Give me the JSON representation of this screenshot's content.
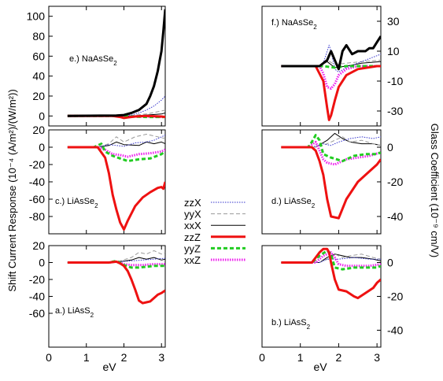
{
  "figure": {
    "left_ylabel": "Shift Current Response (10⁻⁴ (A/m²)/(W/m²))",
    "right_ylabel": "Glass Coefficient (10⁻⁹ cm/V)"
  },
  "legend": [
    {
      "name": "zzX",
      "color": "#3333cc",
      "dash": "1.5,1.5",
      "width": 1
    },
    {
      "name": "yyX",
      "color": "#999999",
      "dash": "5,3",
      "width": 1
    },
    {
      "name": "xxX",
      "color": "#000000",
      "dash": "",
      "width": 1
    },
    {
      "name": "zzZ",
      "color": "#ee1111",
      "dash": "",
      "width": 3
    },
    {
      "name": "yyZ",
      "color": "#22cc22",
      "dash": "5,3",
      "width": 3
    },
    {
      "name": "xxZ",
      "color": "#ee22ee",
      "dash": "1.5,1.5",
      "width": 3
    }
  ],
  "chart_data": [
    {
      "id": "e",
      "type": "line",
      "title": "e.) NaAsSe",
      "title_sub": "2",
      "xlim": [
        0,
        3.1
      ],
      "ylim": [
        -10,
        110
      ],
      "yticks": [
        0,
        20,
        40,
        60,
        80,
        100
      ],
      "series": [
        {
          "name": "zzX",
          "x": [
            0.5,
            1.5,
            1.8,
            2.0,
            2.2,
            2.4,
            2.6,
            2.8,
            3.0,
            3.1
          ],
          "y": [
            0,
            0,
            0,
            0.5,
            1,
            3,
            6,
            10,
            16,
            20
          ]
        },
        {
          "name": "yyX",
          "x": [
            0.5,
            1.8,
            2.2,
            2.6,
            3.0,
            3.1
          ],
          "y": [
            0,
            0,
            0.5,
            2,
            5,
            6
          ]
        },
        {
          "name": "xxX",
          "x": [
            0.5,
            1.8,
            2.2,
            2.6,
            3.0,
            3.1
          ],
          "y": [
            0,
            0,
            0,
            1,
            2,
            3
          ]
        },
        {
          "name": "zzZ",
          "x": [
            0.5,
            1.7,
            1.9,
            2.0,
            2.1,
            2.3,
            2.6,
            3.0,
            3.1
          ],
          "y": [
            0,
            0,
            -1,
            -2,
            -1.5,
            -0.5,
            0,
            -0.5,
            -1
          ]
        },
        {
          "name": "yyZ",
          "x": [
            0.5,
            1.8,
            2.2,
            2.6,
            3.0,
            3.1
          ],
          "y": [
            0,
            0,
            -0.5,
            -1,
            -1,
            -1
          ]
        },
        {
          "name": "xxZ",
          "x": [
            0.5,
            1.8,
            2.2,
            2.6,
            3.0,
            3.1
          ],
          "y": [
            0,
            0,
            -0.5,
            -0.5,
            -1,
            -1
          ]
        },
        {
          "name": "xxX",
          "role": "total",
          "x": [
            0.5,
            1.8,
            2.0,
            2.2,
            2.4,
            2.6,
            2.7,
            2.8,
            2.9,
            2.95,
            3.0,
            3.05,
            3.1
          ],
          "y": [
            0,
            0.5,
            1,
            3,
            6,
            12,
            20,
            30,
            45,
            55,
            65,
            85,
            107
          ]
        }
      ]
    },
    {
      "id": "f",
      "type": "line",
      "title": "f.) NaAsSe",
      "title_sub": "2",
      "xlim": [
        0,
        3.1
      ],
      "ylim": [
        -40,
        40
      ],
      "yticks": [
        -30,
        -10,
        10,
        30
      ],
      "yaxis_side": "right",
      "series": [
        {
          "name": "zzX",
          "x": [
            0.5,
            1.5,
            1.6,
            1.7,
            1.75,
            1.8,
            1.9,
            2.0,
            2.2,
            2.5,
            2.8,
            3.1
          ],
          "y": [
            0,
            0,
            2,
            10,
            14,
            10,
            -2,
            -4,
            -1,
            2,
            5,
            8
          ]
        },
        {
          "name": "yyX",
          "x": [
            0.5,
            1.5,
            1.7,
            1.9,
            2.2,
            2.6,
            3.1
          ],
          "y": [
            0,
            0,
            4,
            1,
            2,
            3,
            4
          ]
        },
        {
          "name": "xxX",
          "x": [
            0.5,
            1.5,
            1.7,
            1.9,
            2.2,
            2.6,
            3.1
          ],
          "y": [
            0,
            0,
            3,
            -1,
            0,
            2,
            3
          ]
        },
        {
          "name": "zzZ",
          "x": [
            0.5,
            1.4,
            1.6,
            1.7,
            1.75,
            1.8,
            1.9,
            2.0,
            2.2,
            2.5,
            3.0,
            3.1
          ],
          "y": [
            0,
            0,
            -10,
            -28,
            -36,
            -33,
            -23,
            -14,
            -6,
            -2,
            0,
            0
          ]
        },
        {
          "name": "yyZ",
          "x": [
            0.5,
            1.6,
            1.9,
            2.2,
            2.6,
            3.1
          ],
          "y": [
            0,
            0,
            -1,
            0,
            0,
            0
          ]
        },
        {
          "name": "xxZ",
          "x": [
            0.5,
            1.5,
            1.6,
            1.7,
            1.8,
            1.9,
            2.0,
            2.2,
            2.5,
            3.1
          ],
          "y": [
            0,
            0,
            -5,
            -14,
            -15,
            -12,
            -6,
            -2,
            0,
            0
          ]
        },
        {
          "name": "xxX",
          "role": "total",
          "x": [
            0.5,
            1.5,
            1.7,
            1.8,
            1.9,
            2.0,
            2.1,
            2.2,
            2.35,
            2.5,
            2.7,
            2.8,
            2.9,
            3.0,
            3.1
          ],
          "y": [
            0,
            0,
            4,
            10,
            4,
            -2,
            10,
            14,
            8,
            10,
            10,
            12,
            12,
            16,
            20
          ]
        }
      ]
    },
    {
      "id": "c",
      "type": "line",
      "title": "c.) LiAsSe",
      "title_sub": "2",
      "xlim": [
        0,
        3.1
      ],
      "ylim": [
        -100,
        20
      ],
      "yticks": [
        -80,
        -60,
        -40,
        -20,
        0,
        20
      ],
      "series": [
        {
          "name": "zzX",
          "x": [
            0.5,
            1.3,
            1.6,
            2.0,
            2.3,
            2.6,
            2.8,
            3.0,
            3.1
          ],
          "y": [
            0,
            0,
            3,
            1,
            5,
            6,
            8,
            12,
            14
          ]
        },
        {
          "name": "yyX",
          "x": [
            0.5,
            1.3,
            1.6,
            1.8,
            2.0,
            2.3,
            2.6,
            2.9,
            3.1
          ],
          "y": [
            0,
            0,
            4,
            12,
            6,
            12,
            15,
            12,
            10
          ]
        },
        {
          "name": "xxX",
          "x": [
            0.5,
            1.3,
            1.6,
            1.8,
            2.0,
            2.4,
            2.6,
            2.8,
            3.0,
            3.1
          ],
          "y": [
            0,
            0,
            2,
            6,
            3,
            2,
            6,
            4,
            6,
            4
          ]
        },
        {
          "name": "zzZ",
          "x": [
            0.5,
            1.3,
            1.5,
            1.6,
            1.7,
            1.8,
            1.9,
            2.0,
            2.1,
            2.3,
            2.5,
            2.7,
            2.9,
            3.0,
            3.05,
            3.1
          ],
          "y": [
            0,
            0,
            -12,
            -30,
            -55,
            -72,
            -87,
            -95,
            -85,
            -68,
            -58,
            -52,
            -47,
            -46,
            -48,
            -40
          ]
        },
        {
          "name": "yyZ",
          "x": [
            0.5,
            1.2,
            1.4,
            1.5,
            1.7,
            1.9,
            2.1,
            2.4,
            2.7,
            3.0,
            3.1
          ],
          "y": [
            0,
            0,
            4,
            -5,
            -10,
            -13,
            -16,
            -14,
            -13,
            -8,
            -5
          ]
        },
        {
          "name": "xxZ",
          "x": [
            0.5,
            1.3,
            1.5,
            1.7,
            1.9,
            2.1,
            2.4,
            2.7,
            3.0,
            3.1
          ],
          "y": [
            0,
            0,
            -3,
            -8,
            -9,
            -11,
            -8,
            -7,
            -5,
            -3
          ]
        }
      ]
    },
    {
      "id": "d",
      "type": "line",
      "title": "d.) LiAsSe",
      "title_sub": "2",
      "xlim": [
        0,
        3.1
      ],
      "ylim": [
        -50,
        10
      ],
      "yticks": [
        -40,
        -20,
        0
      ],
      "yaxis_side": "right",
      "series": [
        {
          "name": "zzX",
          "x": [
            0.5,
            1.3,
            1.6,
            1.8,
            2.0,
            2.3,
            2.6,
            2.9,
            3.1
          ],
          "y": [
            0,
            0,
            2,
            1,
            3,
            5,
            6,
            5,
            6
          ]
        },
        {
          "name": "yyX",
          "x": [
            0.5,
            1.4,
            1.7,
            1.9,
            2.1,
            2.3,
            2.6,
            2.9,
            3.1
          ],
          "y": [
            0,
            0,
            2,
            4,
            6,
            3,
            4,
            2,
            1
          ]
        },
        {
          "name": "xxX",
          "x": [
            0.5,
            1.4,
            1.7,
            1.9,
            2.1,
            2.3,
            2.6,
            2.9,
            3.1
          ],
          "y": [
            0,
            0,
            4,
            8,
            5,
            3,
            2,
            2,
            1
          ]
        },
        {
          "name": "zzZ",
          "x": [
            0.5,
            1.3,
            1.4,
            1.5,
            1.6,
            1.7,
            1.8,
            2.0,
            2.2,
            2.5,
            2.8,
            3.0,
            3.1
          ],
          "y": [
            0,
            0,
            -2,
            -8,
            -16,
            -30,
            -40,
            -41,
            -30,
            -20,
            -14,
            -10,
            -7
          ]
        },
        {
          "name": "yyZ",
          "x": [
            0.5,
            1.2,
            1.3,
            1.4,
            1.5,
            1.6,
            1.8,
            2.1,
            2.4,
            2.7,
            3.0,
            3.1
          ],
          "y": [
            0,
            0,
            3,
            7,
            4,
            -4,
            -6,
            -8,
            -5,
            -4,
            -4,
            -3
          ]
        },
        {
          "name": "xxZ",
          "x": [
            0.5,
            1.2,
            1.4,
            1.5,
            1.6,
            1.7,
            1.9,
            2.2,
            2.5,
            2.8,
            3.1
          ],
          "y": [
            0,
            0,
            3,
            -2,
            -7,
            -9,
            -10,
            -7,
            -6,
            -5,
            -3
          ]
        }
      ]
    },
    {
      "id": "a",
      "type": "line",
      "title": "a.) LiAsS",
      "title_sub": "2",
      "xlim": [
        0,
        3.1
      ],
      "ylim": [
        -100,
        20
      ],
      "yticks": [
        -60,
        -40,
        -20,
        0,
        20
      ],
      "series": [
        {
          "name": "zzX",
          "x": [
            0.5,
            1.6,
            1.9,
            2.2,
            2.5,
            2.8,
            3.1
          ],
          "y": [
            0,
            0,
            1,
            2,
            3,
            4,
            5
          ]
        },
        {
          "name": "yyX",
          "x": [
            0.5,
            1.6,
            1.9,
            2.2,
            2.4,
            2.6,
            2.8,
            3.0,
            3.1
          ],
          "y": [
            0,
            0,
            2,
            6,
            12,
            10,
            14,
            10,
            12
          ]
        },
        {
          "name": "xxX",
          "x": [
            0.5,
            1.6,
            1.9,
            2.2,
            2.4,
            2.6,
            2.8,
            3.0,
            3.1
          ],
          "y": [
            0,
            0,
            1,
            3,
            6,
            4,
            6,
            3,
            4
          ]
        },
        {
          "name": "zzZ",
          "x": [
            0.5,
            1.6,
            1.8,
            1.9,
            2.0,
            2.1,
            2.2,
            2.3,
            2.4,
            2.5,
            2.6,
            2.7,
            2.8,
            2.9,
            3.0,
            3.1
          ],
          "y": [
            0,
            0,
            1,
            -1,
            -4,
            -10,
            -20,
            -32,
            -45,
            -48,
            -47,
            -46,
            -42,
            -38,
            -36,
            -33
          ]
        },
        {
          "name": "yyZ",
          "x": [
            0.5,
            1.6,
            1.8,
            2.0,
            2.2,
            2.4,
            2.6,
            2.8,
            3.1
          ],
          "y": [
            0,
            0,
            2,
            -3,
            -6,
            -6,
            -5,
            -4,
            -4
          ]
        },
        {
          "name": "xxZ",
          "x": [
            0.5,
            1.6,
            1.8,
            2.0,
            2.2,
            2.5,
            2.8,
            3.1
          ],
          "y": [
            0,
            0,
            1,
            -2,
            -3,
            -3,
            -2,
            -2
          ]
        }
      ]
    },
    {
      "id": "b",
      "type": "line",
      "title": "b.) LiAsS",
      "title_sub": "2",
      "xlim": [
        0,
        3.1
      ],
      "ylim": [
        -50,
        10
      ],
      "yticks": [
        -40,
        -20,
        0
      ],
      "yaxis_side": "right",
      "series": [
        {
          "name": "zzX",
          "x": [
            0.5,
            1.5,
            1.7,
            2.0,
            2.4,
            2.8,
            3.1
          ],
          "y": [
            0,
            0,
            2,
            2,
            3,
            2,
            2
          ]
        },
        {
          "name": "yyX",
          "x": [
            0.5,
            1.5,
            1.7,
            1.9,
            2.1,
            2.3,
            2.6,
            2.9,
            3.1
          ],
          "y": [
            0,
            0,
            2,
            5,
            3,
            4,
            5,
            3,
            2
          ]
        },
        {
          "name": "xxX",
          "x": [
            0.5,
            1.5,
            1.7,
            1.9,
            2.1,
            2.3,
            2.6,
            2.9,
            3.1
          ],
          "y": [
            0,
            0,
            3,
            5,
            4,
            3,
            3,
            2,
            1
          ]
        },
        {
          "name": "zzZ",
          "x": [
            0.5,
            1.3,
            1.4,
            1.5,
            1.6,
            1.7,
            1.75,
            1.8,
            1.9,
            2.0,
            2.2,
            2.4,
            2.5,
            2.7,
            2.9,
            3.0,
            3.1
          ],
          "y": [
            0,
            0,
            3,
            6,
            8,
            8,
            6,
            0,
            -10,
            -16,
            -17,
            -20,
            -21,
            -18,
            -15,
            -12,
            -10
          ]
        },
        {
          "name": "yyZ",
          "x": [
            0.5,
            1.3,
            1.5,
            1.7,
            1.8,
            1.9,
            2.1,
            2.4,
            2.7,
            3.0,
            3.1
          ],
          "y": [
            0,
            0,
            4,
            7,
            5,
            -3,
            -4,
            -3,
            -3,
            -3,
            -2
          ]
        },
        {
          "name": "xxZ",
          "x": [
            0.5,
            1.4,
            1.6,
            1.8,
            1.9,
            2.0,
            2.2,
            2.5,
            2.8,
            3.1
          ],
          "y": [
            0,
            0,
            4,
            6,
            3,
            -1,
            -2,
            -2,
            -2,
            -1
          ]
        }
      ]
    }
  ],
  "xaxis": {
    "label": "eV",
    "ticks": [
      0,
      1,
      2,
      3
    ],
    "ticks_right": [
      0,
      1,
      2,
      3
    ]
  }
}
